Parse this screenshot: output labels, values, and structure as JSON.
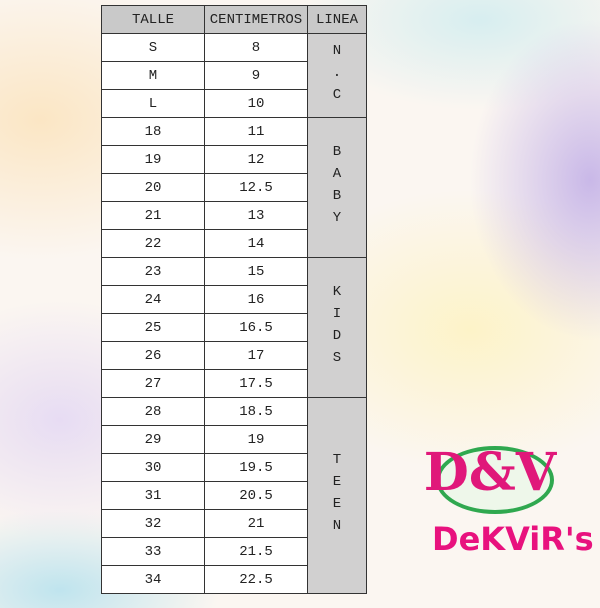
{
  "table": {
    "header": [
      "TALLE",
      "CENTIMETROS",
      "LINEA"
    ],
    "rows": [
      [
        "S",
        8
      ],
      [
        "M",
        9
      ],
      [
        "L",
        10
      ],
      [
        18,
        11
      ],
      [
        19,
        12
      ],
      [
        20,
        12.5
      ],
      [
        21,
        13
      ],
      [
        22,
        14
      ],
      [
        23,
        15
      ],
      [
        24,
        16
      ],
      [
        25,
        16.5
      ],
      [
        26,
        17
      ],
      [
        27,
        17.5
      ],
      [
        28,
        18.5
      ],
      [
        29,
        19
      ],
      [
        30,
        19.5
      ],
      [
        31,
        20.5
      ],
      [
        32,
        21
      ],
      [
        33,
        21.5
      ],
      [
        34,
        22.5
      ]
    ],
    "groups": [
      {
        "label": "N.C",
        "rows": 3
      },
      {
        "label": "BABY",
        "rows": 5
      },
      {
        "label": "KIDS",
        "rows": 5
      },
      {
        "label": "TEEN",
        "rows": 7
      }
    ]
  },
  "logo": {
    "top": "D&V",
    "bottom": "DeKViR's"
  }
}
